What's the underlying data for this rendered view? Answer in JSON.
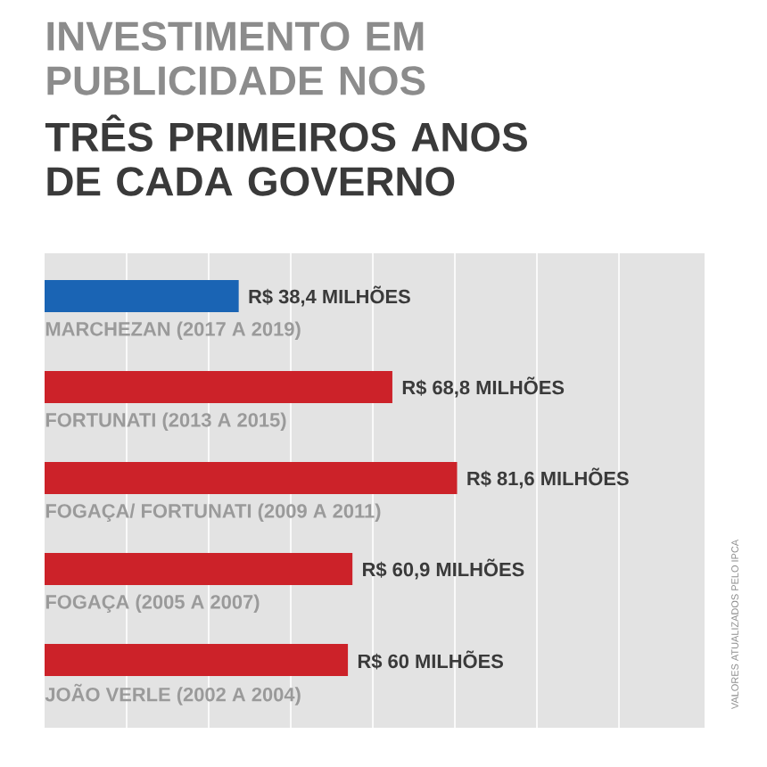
{
  "chart_data": {
    "type": "bar",
    "orientation": "horizontal",
    "title": "INVESTIMENTO EM PUBLICIDADE NOS",
    "subtitle": "TRÊS PRIMEIROS ANOS DE CADA GOVERNO",
    "categories": [
      "MARCHEZAN (2017 A 2019)",
      "FORTUNATI (2013 A 2015)",
      "FOGAÇA/ FORTUNATI (2009 A 2011)",
      "FOGAÇA (2005 A 2007)",
      "JOÃO VERLE (2002 A 2004)"
    ],
    "values": [
      38.4,
      68.8,
      81.6,
      60.9,
      60
    ],
    "colors": [
      "#1a64b4",
      "#cc2229",
      "#cc2229",
      "#cc2229",
      "#cc2229"
    ],
    "value_labels": [
      "R$ 38,4 MILHÕES",
      "R$ 68,8 MILHÕES",
      "R$ 81,6 MILHÕES",
      "R$ 60,9 MILHÕES",
      "R$ 60 MILHÕES"
    ],
    "annotations": [
      "VALORES ATUALIZADOS PELO IPCA"
    ]
  }
}
